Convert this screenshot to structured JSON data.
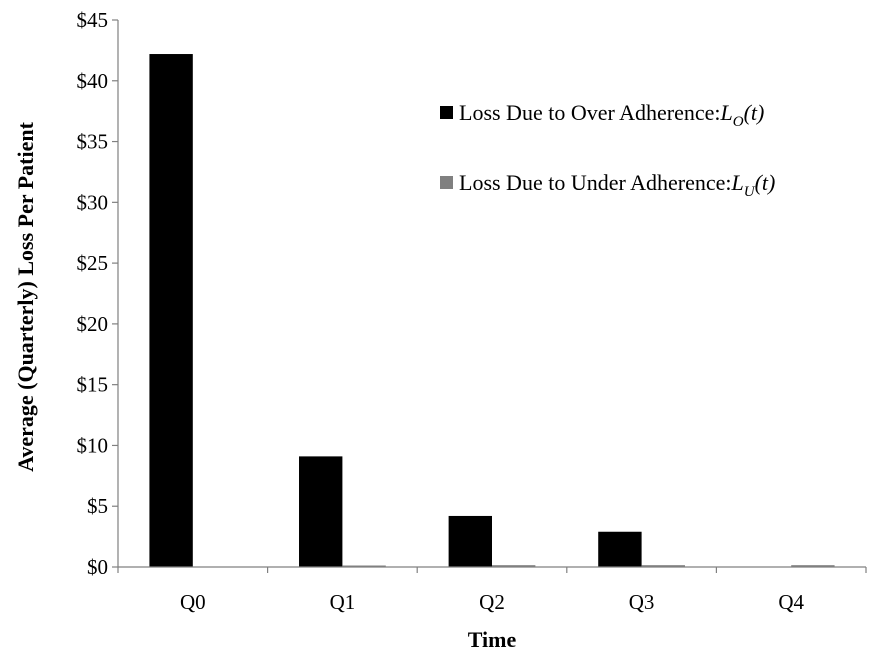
{
  "chart_data": {
    "type": "bar",
    "title": "",
    "xlabel": "Time",
    "ylabel": "Average (Quarterly) Loss Per Patient",
    "categories": [
      "Q0",
      "Q1",
      "Q2",
      "Q3",
      "Q4"
    ],
    "ylim": [
      0,
      45
    ],
    "yticks": [
      0,
      5,
      10,
      15,
      20,
      25,
      30,
      35,
      40,
      45
    ],
    "ytick_labels": [
      "$0",
      "$5",
      "$10",
      "$15",
      "$20",
      "$25",
      "$30",
      "$35",
      "$40",
      "$45"
    ],
    "grid": false,
    "legend_position": "top-right",
    "series": [
      {
        "name": "Loss Due to Over Adherence:",
        "symbol": "L",
        "subscript": "O",
        "arg": "(t)",
        "color": "#000000",
        "values": [
          42.2,
          9.1,
          4.2,
          2.9,
          0
        ]
      },
      {
        "name": "Loss Due to Under Adherence:",
        "symbol": "L",
        "subscript": "U",
        "arg": "(t)",
        "color": "#808080",
        "values": [
          0,
          0.1,
          0.15,
          0.15,
          0.15
        ]
      }
    ]
  }
}
